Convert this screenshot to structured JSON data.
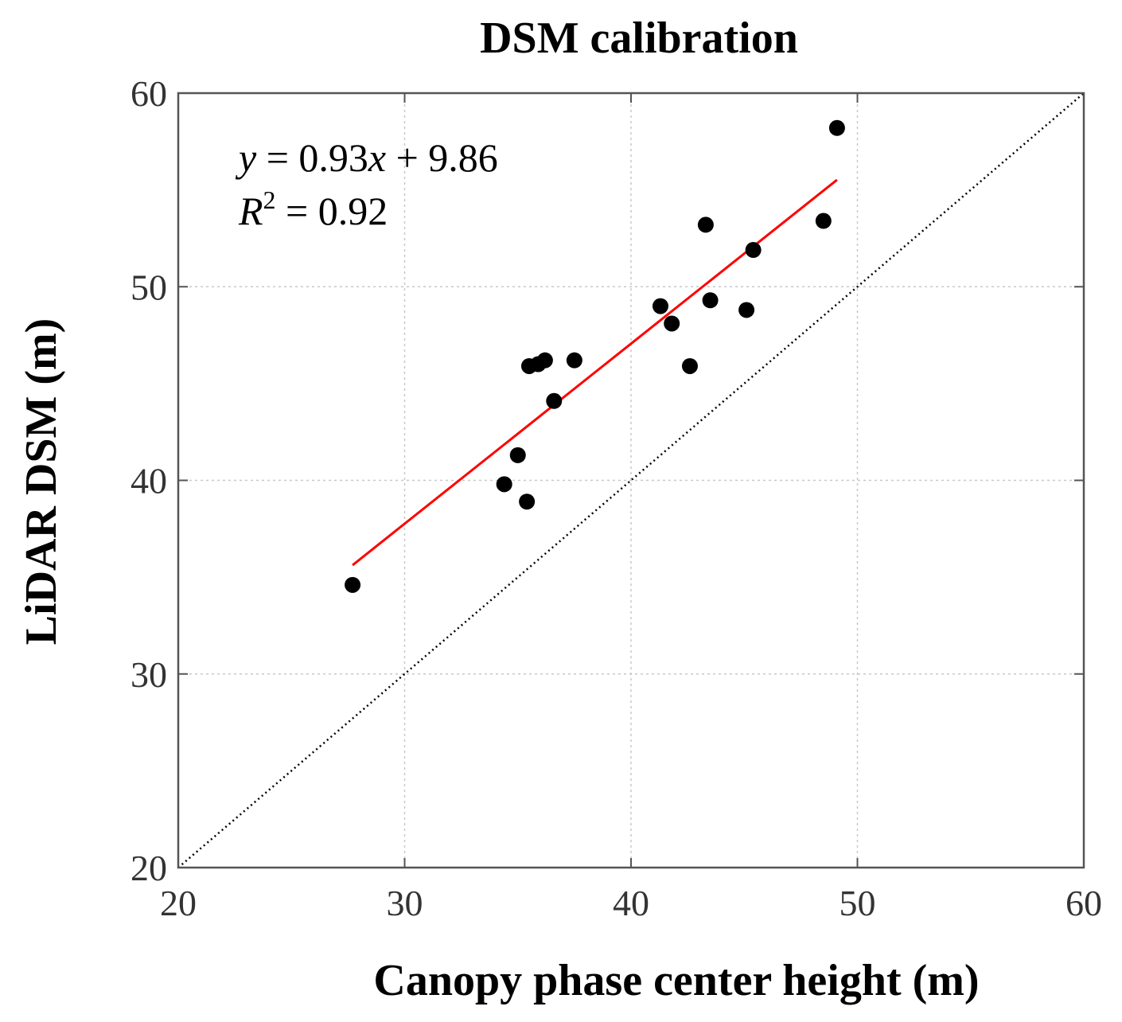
{
  "chart_data": {
    "type": "scatter",
    "title": "DSM calibration",
    "xlabel": "Canopy phase center height (m)",
    "ylabel": "LiDAR DSM (m)",
    "xlim": [
      20,
      60
    ],
    "ylim": [
      20,
      60
    ],
    "xticks": [
      20,
      30,
      40,
      50,
      60
    ],
    "yticks": [
      20,
      30,
      40,
      50,
      60
    ],
    "grid": true,
    "annotations": {
      "equation": {
        "y_var": "y",
        "eq": " = 0.93",
        "x_var": "x",
        "rest": " + 9.86"
      },
      "r2": {
        "r_var": "R",
        "sup": "2",
        "rest": " = 0.92"
      }
    },
    "series": [
      {
        "name": "observations",
        "type": "scatter",
        "color": "#000000",
        "x": [
          27.7,
          34.4,
          35.0,
          35.4,
          35.5,
          35.9,
          36.2,
          36.6,
          37.5,
          41.3,
          41.8,
          42.6,
          43.3,
          43.5,
          45.1,
          45.4,
          48.5,
          49.1
        ],
        "y": [
          34.6,
          39.8,
          41.3,
          38.9,
          45.9,
          46.0,
          46.2,
          44.1,
          46.2,
          49.0,
          48.1,
          45.9,
          53.2,
          49.3,
          48.8,
          51.9,
          53.4,
          58.2
        ]
      },
      {
        "name": "fit",
        "type": "line",
        "color": "#ff0000",
        "slope": 0.93,
        "intercept": 9.86,
        "x_range": [
          27.7,
          49.1
        ]
      },
      {
        "name": "1:1 line",
        "type": "line",
        "color": "#000000",
        "style": "dotted",
        "x": [
          20,
          60
        ],
        "y": [
          20,
          60
        ]
      }
    ]
  }
}
